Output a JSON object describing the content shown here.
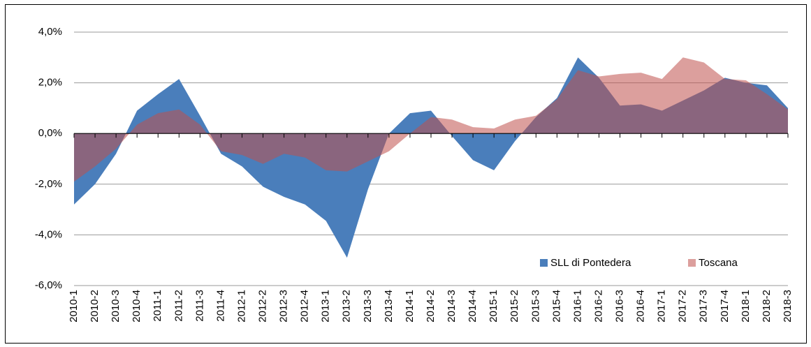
{
  "chart_data": {
    "type": "area",
    "categories": [
      "2010-1",
      "2010-2",
      "2010-3",
      "2010-4",
      "2011-1",
      "2011-2",
      "2011-3",
      "2011-4",
      "2012-1",
      "2012-2",
      "2012-3",
      "2012-4",
      "2013-1",
      "2013-2",
      "2013-3",
      "2013-4",
      "2014-1",
      "2014-2",
      "2014-3",
      "2014-4",
      "2015-1",
      "2015-2",
      "2015-3",
      "2015-4",
      "2016-1",
      "2016-2",
      "2016-3",
      "2016-4",
      "2017-1",
      "2017-2",
      "2017-3",
      "2017-4",
      "2018-1",
      "2018-2",
      "2018-3"
    ],
    "series": [
      {
        "name": "SLL di Pontedera",
        "color": "#4a7ebb",
        "values": [
          -2.8,
          -2.0,
          -0.8,
          0.9,
          1.55,
          2.15,
          0.7,
          -0.8,
          -1.3,
          -2.1,
          -2.5,
          -2.8,
          -3.45,
          -4.9,
          -2.2,
          0.0,
          0.8,
          0.9,
          -0.1,
          -1.05,
          -1.45,
          -0.3,
          0.65,
          1.4,
          3.0,
          2.2,
          1.1,
          1.15,
          0.9,
          1.3,
          1.7,
          2.2,
          2.0,
          1.9,
          1.0
        ]
      },
      {
        "name": "Toscana",
        "color": "#c0504d",
        "values": [
          -1.9,
          -1.3,
          -0.6,
          0.35,
          0.8,
          0.95,
          0.35,
          -0.7,
          -0.85,
          -1.2,
          -0.8,
          -0.95,
          -1.45,
          -1.5,
          -1.1,
          -0.7,
          0.0,
          0.65,
          0.55,
          0.25,
          0.2,
          0.55,
          0.7,
          1.35,
          2.5,
          2.25,
          2.35,
          2.4,
          2.15,
          3.0,
          2.8,
          2.15,
          2.1,
          1.55,
          0.95
        ]
      }
    ],
    "ylim": [
      -6,
      4
    ],
    "yticks": [
      {
        "value": -6,
        "label": "-6,0%"
      },
      {
        "value": -4,
        "label": "-4,0%"
      },
      {
        "value": -2,
        "label": "-2,0%"
      },
      {
        "value": 0,
        "label": "0,0%"
      },
      {
        "value": 2,
        "label": "2,0%"
      },
      {
        "value": 4,
        "label": "4,0%"
      }
    ],
    "grid": true,
    "legend": "bottom-right"
  }
}
